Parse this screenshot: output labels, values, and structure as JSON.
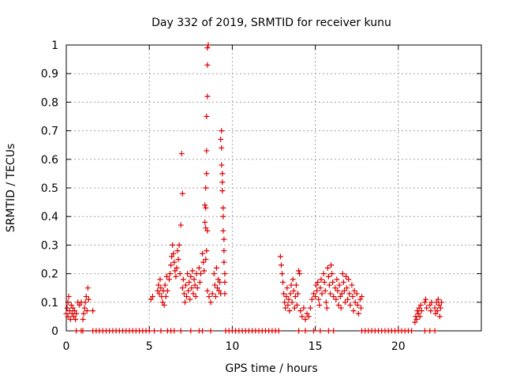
{
  "chart_data": {
    "type": "scatter",
    "title": "Day 332 of 2019, SRMTID for receiver kunu",
    "xlabel": "GPS time / hours",
    "ylabel": "SRMTID / TECUs",
    "xlim": [
      0,
      25
    ],
    "ylim": [
      0,
      1
    ],
    "x_ticks": [
      "0",
      "5",
      "10",
      "15",
      "20"
    ],
    "y_ticks": [
      "0",
      "0.1",
      "0.2",
      "0.3",
      "0.4",
      "0.5",
      "0.6",
      "0.7",
      "0.8",
      "0.9",
      "1"
    ],
    "grid": true,
    "legend": "none",
    "marker": "plus",
    "color": "#dd0000",
    "series": [
      {
        "values": [
          [
            0.0,
            0.06
          ],
          [
            0.05,
            0.08
          ],
          [
            0.1,
            0.1
          ],
          [
            0.1,
            0.05
          ],
          [
            0.15,
            0.12
          ],
          [
            0.2,
            0.07
          ],
          [
            0.25,
            0.04
          ],
          [
            0.3,
            0.09
          ],
          [
            0.35,
            0.06
          ],
          [
            0.4,
            0.08
          ],
          [
            0.45,
            0.05
          ],
          [
            0.5,
            0.07
          ],
          [
            0.55,
            0.04
          ],
          [
            0.6,
            0.06
          ],
          [
            0.7,
            0.1
          ],
          [
            0.8,
            0.09
          ],
          [
            0.9,
            0.1
          ],
          [
            1.0,
            0.04
          ],
          [
            1.05,
            0.06
          ],
          [
            1.1,
            0.08
          ],
          [
            1.15,
            0.1
          ],
          [
            1.2,
            0.12
          ],
          [
            1.25,
            0.07
          ],
          [
            1.3,
            0.15
          ],
          [
            1.35,
            0.11
          ],
          [
            1.6,
            0.07
          ],
          [
            5.1,
            0.11
          ],
          [
            5.2,
            0.12
          ],
          [
            5.5,
            0.14
          ],
          [
            5.55,
            0.16
          ],
          [
            5.6,
            0.13
          ],
          [
            5.65,
            0.18
          ],
          [
            5.7,
            0.15
          ],
          [
            5.75,
            0.12
          ],
          [
            5.8,
            0.1
          ],
          [
            5.85,
            0.14
          ],
          [
            5.9,
            0.09
          ],
          [
            5.95,
            0.16
          ],
          [
            6.0,
            0.12
          ],
          [
            6.05,
            0.19
          ],
          [
            6.1,
            0.14
          ],
          [
            6.2,
            0.18
          ],
          [
            6.25,
            0.2
          ],
          [
            6.3,
            0.23
          ],
          [
            6.35,
            0.26
          ],
          [
            6.4,
            0.3
          ],
          [
            6.45,
            0.27
          ],
          [
            6.5,
            0.24
          ],
          [
            6.55,
            0.21
          ],
          [
            6.6,
            0.19
          ],
          [
            6.65,
            0.22
          ],
          [
            6.7,
            0.28
          ],
          [
            6.75,
            0.25
          ],
          [
            6.8,
            0.3
          ],
          [
            6.85,
            0.2
          ],
          [
            6.9,
            0.37
          ],
          [
            6.95,
            0.62
          ],
          [
            7.0,
            0.48
          ],
          [
            7.0,
            0.15
          ],
          [
            7.05,
            0.18
          ],
          [
            7.1,
            0.13
          ],
          [
            7.15,
            0.1
          ],
          [
            7.2,
            0.16
          ],
          [
            7.25,
            0.12
          ],
          [
            7.3,
            0.2
          ],
          [
            7.35,
            0.14
          ],
          [
            7.4,
            0.17
          ],
          [
            7.45,
            0.11
          ],
          [
            7.5,
            0.19
          ],
          [
            7.55,
            0.15
          ],
          [
            7.6,
            0.21
          ],
          [
            7.65,
            0.13
          ],
          [
            7.7,
            0.18
          ],
          [
            7.75,
            0.16
          ],
          [
            7.8,
            0.12
          ],
          [
            7.85,
            0.2
          ],
          [
            7.9,
            0.15
          ],
          [
            8.0,
            0.22
          ],
          [
            8.05,
            0.17
          ],
          [
            8.1,
            0.2
          ],
          [
            8.2,
            0.27
          ],
          [
            8.25,
            0.24
          ],
          [
            8.3,
            0.21
          ],
          [
            8.35,
            0.38
          ],
          [
            8.35,
            0.44
          ],
          [
            8.4,
            0.5
          ],
          [
            8.4,
            0.43
          ],
          [
            8.4,
            0.36
          ],
          [
            8.45,
            0.55
          ],
          [
            8.45,
            0.63
          ],
          [
            8.45,
            0.75
          ],
          [
            8.5,
            0.82
          ],
          [
            8.5,
            0.93
          ],
          [
            8.5,
            0.99
          ],
          [
            8.55,
            1.0
          ],
          [
            8.5,
            0.35
          ],
          [
            8.45,
            0.28
          ],
          [
            8.4,
            0.25
          ],
          [
            8.5,
            0.14
          ],
          [
            8.6,
            0.12
          ],
          [
            8.7,
            0.1
          ],
          [
            8.8,
            0.13
          ],
          [
            8.9,
            0.2
          ],
          [
            8.95,
            0.16
          ],
          [
            9.0,
            0.12
          ],
          [
            9.05,
            0.22
          ],
          [
            9.1,
            0.15
          ],
          [
            9.15,
            0.18
          ],
          [
            9.2,
            0.14
          ],
          [
            9.25,
            0.17
          ],
          [
            9.3,
            0.13
          ],
          [
            9.3,
            0.67
          ],
          [
            9.35,
            0.7
          ],
          [
            9.35,
            0.64
          ],
          [
            9.35,
            0.58
          ],
          [
            9.4,
            0.55
          ],
          [
            9.4,
            0.52
          ],
          [
            9.4,
            0.49
          ],
          [
            9.45,
            0.43
          ],
          [
            9.45,
            0.4
          ],
          [
            9.45,
            0.35
          ],
          [
            9.5,
            0.32
          ],
          [
            9.5,
            0.28
          ],
          [
            9.5,
            0.24
          ],
          [
            9.55,
            0.2
          ],
          [
            9.55,
            0.17
          ],
          [
            9.55,
            0.13
          ],
          [
            12.9,
            0.26
          ],
          [
            12.95,
            0.23
          ],
          [
            13.0,
            0.2
          ],
          [
            13.05,
            0.17
          ],
          [
            13.1,
            0.13
          ],
          [
            13.15,
            0.1
          ],
          [
            13.2,
            0.08
          ],
          [
            13.25,
            0.12
          ],
          [
            13.3,
            0.15
          ],
          [
            13.35,
            0.09
          ],
          [
            13.4,
            0.11
          ],
          [
            13.45,
            0.07
          ],
          [
            13.5,
            0.13
          ],
          [
            13.55,
            0.16
          ],
          [
            13.6,
            0.1
          ],
          [
            13.65,
            0.18
          ],
          [
            13.7,
            0.14
          ],
          [
            13.75,
            0.08
          ],
          [
            13.8,
            0.12
          ],
          [
            13.85,
            0.16
          ],
          [
            13.9,
            0.09
          ],
          [
            13.95,
            0.13
          ],
          [
            14.0,
            0.21
          ],
          [
            14.05,
            0.2
          ],
          [
            14.1,
            0.07
          ],
          [
            14.2,
            0.05
          ],
          [
            14.3,
            0.08
          ],
          [
            14.4,
            0.04
          ],
          [
            14.5,
            0.06
          ],
          [
            14.6,
            0.05
          ],
          [
            14.7,
            0.08
          ],
          [
            14.8,
            0.11
          ],
          [
            14.9,
            0.13
          ],
          [
            15.0,
            0.12
          ],
          [
            15.05,
            0.16
          ],
          [
            15.1,
            0.14
          ],
          [
            15.15,
            0.17
          ],
          [
            15.2,
            0.11
          ],
          [
            15.25,
            0.09
          ],
          [
            15.3,
            0.15
          ],
          [
            15.35,
            0.18
          ],
          [
            15.4,
            0.13
          ],
          [
            15.5,
            0.2
          ],
          [
            15.55,
            0.17
          ],
          [
            15.6,
            0.14
          ],
          [
            15.65,
            0.1
          ],
          [
            15.7,
            0.08
          ],
          [
            15.75,
            0.22
          ],
          [
            15.8,
            0.19
          ],
          [
            15.85,
            0.16
          ],
          [
            15.9,
            0.13
          ],
          [
            15.95,
            0.23
          ],
          [
            16.0,
            0.2
          ],
          [
            16.05,
            0.17
          ],
          [
            16.1,
            0.12
          ],
          [
            16.2,
            0.15
          ],
          [
            16.25,
            0.11
          ],
          [
            16.3,
            0.18
          ],
          [
            16.35,
            0.14
          ],
          [
            16.4,
            0.09
          ],
          [
            16.45,
            0.16
          ],
          [
            16.5,
            0.12
          ],
          [
            16.55,
            0.08
          ],
          [
            16.6,
            0.13
          ],
          [
            16.65,
            0.2
          ],
          [
            16.7,
            0.17
          ],
          [
            16.75,
            0.14
          ],
          [
            16.8,
            0.1
          ],
          [
            16.85,
            0.19
          ],
          [
            16.9,
            0.15
          ],
          [
            16.95,
            0.11
          ],
          [
            17.0,
            0.18
          ],
          [
            17.05,
            0.13
          ],
          [
            17.1,
            0.09
          ],
          [
            17.2,
            0.16
          ],
          [
            17.25,
            0.12
          ],
          [
            17.3,
            0.07
          ],
          [
            17.35,
            0.14
          ],
          [
            17.4,
            0.1
          ],
          [
            17.5,
            0.13
          ],
          [
            17.55,
            0.09
          ],
          [
            17.6,
            0.06
          ],
          [
            17.7,
            0.11
          ],
          [
            17.75,
            0.08
          ],
          [
            17.8,
            0.12
          ],
          [
            21.0,
            0.03
          ],
          [
            21.05,
            0.05
          ],
          [
            21.1,
            0.04
          ],
          [
            21.15,
            0.07
          ],
          [
            21.2,
            0.06
          ],
          [
            21.25,
            0.08
          ],
          [
            21.3,
            0.05
          ],
          [
            21.35,
            0.09
          ],
          [
            21.4,
            0.07
          ],
          [
            21.6,
            0.1
          ],
          [
            21.65,
            0.11
          ],
          [
            21.7,
            0.08
          ],
          [
            21.9,
            0.09
          ],
          [
            21.95,
            0.07
          ],
          [
            22.0,
            0.1
          ],
          [
            22.2,
            0.08
          ],
          [
            22.25,
            0.06
          ],
          [
            22.3,
            0.1
          ],
          [
            22.35,
            0.07
          ],
          [
            22.4,
            0.11
          ],
          [
            22.45,
            0.09
          ],
          [
            22.5,
            0.05
          ],
          [
            22.55,
            0.08
          ],
          [
            22.6,
            0.1
          ],
          [
            0.6,
            0.0
          ],
          [
            0.9,
            0.0
          ],
          [
            1.0,
            0.0
          ],
          [
            1.6,
            0.0
          ],
          [
            1.8,
            0.0
          ],
          [
            2.0,
            0.0
          ],
          [
            2.2,
            0.0
          ],
          [
            2.4,
            0.0
          ],
          [
            2.6,
            0.0
          ],
          [
            2.8,
            0.0
          ],
          [
            3.0,
            0.0
          ],
          [
            3.2,
            0.0
          ],
          [
            3.4,
            0.0
          ],
          [
            3.6,
            0.0
          ],
          [
            3.8,
            0.0
          ],
          [
            4.0,
            0.0
          ],
          [
            4.2,
            0.0
          ],
          [
            4.4,
            0.0
          ],
          [
            4.6,
            0.0
          ],
          [
            4.8,
            0.0
          ],
          [
            5.0,
            0.0
          ],
          [
            5.3,
            0.0
          ],
          [
            5.7,
            0.0
          ],
          [
            6.1,
            0.0
          ],
          [
            6.3,
            0.0
          ],
          [
            6.5,
            0.0
          ],
          [
            6.9,
            0.0
          ],
          [
            7.5,
            0.0
          ],
          [
            8.0,
            0.0
          ],
          [
            8.2,
            0.0
          ],
          [
            8.7,
            0.0
          ],
          [
            9.6,
            0.0
          ],
          [
            9.8,
            0.0
          ],
          [
            10.0,
            0.0
          ],
          [
            10.2,
            0.0
          ],
          [
            10.4,
            0.0
          ],
          [
            10.6,
            0.0
          ],
          [
            10.8,
            0.0
          ],
          [
            11.0,
            0.0
          ],
          [
            11.2,
            0.0
          ],
          [
            11.4,
            0.0
          ],
          [
            11.6,
            0.0
          ],
          [
            11.8,
            0.0
          ],
          [
            12.0,
            0.0
          ],
          [
            12.2,
            0.0
          ],
          [
            12.4,
            0.0
          ],
          [
            12.6,
            0.0
          ],
          [
            12.8,
            0.0
          ],
          [
            14.0,
            0.0
          ],
          [
            14.4,
            0.0
          ],
          [
            14.9,
            0.0
          ],
          [
            15.3,
            0.0
          ],
          [
            15.8,
            0.0
          ],
          [
            16.1,
            0.0
          ],
          [
            17.8,
            0.0
          ],
          [
            18.0,
            0.0
          ],
          [
            18.2,
            0.0
          ],
          [
            18.4,
            0.0
          ],
          [
            18.6,
            0.0
          ],
          [
            18.8,
            0.0
          ],
          [
            19.0,
            0.0
          ],
          [
            19.2,
            0.0
          ],
          [
            19.4,
            0.0
          ],
          [
            19.6,
            0.0
          ],
          [
            19.8,
            0.0
          ],
          [
            20.0,
            0.0
          ],
          [
            20.2,
            0.0
          ],
          [
            20.4,
            0.0
          ],
          [
            20.6,
            0.0
          ],
          [
            20.8,
            0.0
          ],
          [
            21.6,
            0.0
          ],
          [
            21.9,
            0.0
          ],
          [
            22.2,
            0.0
          ]
        ]
      }
    ]
  }
}
